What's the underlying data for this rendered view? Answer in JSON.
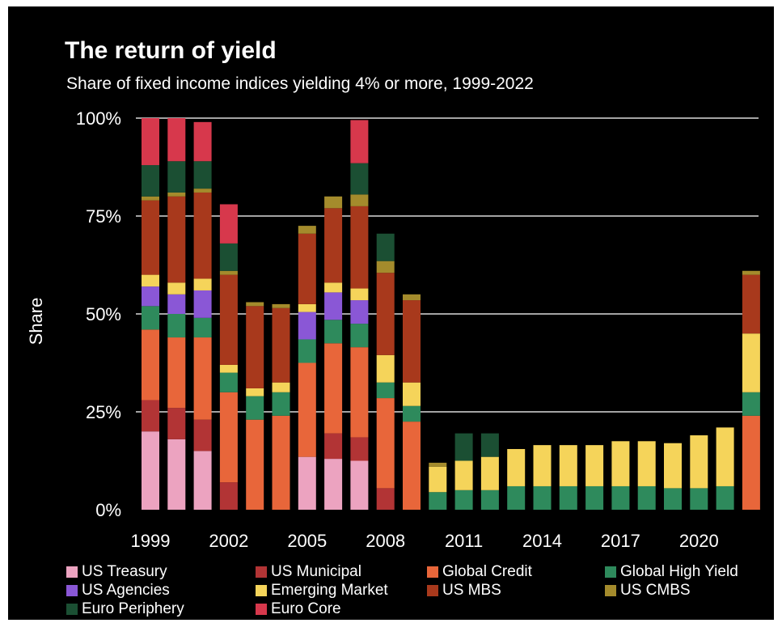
{
  "chart_data": {
    "type": "bar",
    "stacked": true,
    "title": "The return of yield",
    "subtitle": "Share of fixed income indices yielding 4% or more, 1999-2022",
    "xlabel": "",
    "ylabel": "Share",
    "ylim": [
      0,
      100
    ],
    "yticks": [
      "0%",
      "25%",
      "50%",
      "75%",
      "100%"
    ],
    "xticks": [
      "1999",
      "2002",
      "2005",
      "2008",
      "2011",
      "2014",
      "2017",
      "2020"
    ],
    "categories": [
      "1999",
      "2000",
      "2001",
      "2002",
      "2003",
      "2004",
      "2005",
      "2006",
      "2007",
      "2008",
      "2009",
      "2010",
      "2011",
      "2012",
      "2013",
      "2014",
      "2015",
      "2016",
      "2017",
      "2018",
      "2019",
      "2020",
      "2021",
      "2022"
    ],
    "grid": true,
    "legend_position": "bottom",
    "series": [
      {
        "name": "US Treasury",
        "color": "#eca3c0",
        "values": [
          20,
          18,
          15,
          0,
          0,
          0,
          13.5,
          13,
          12.5,
          0,
          0,
          0,
          0,
          0,
          0,
          0,
          0,
          0,
          0,
          0,
          0,
          0,
          0,
          0
        ]
      },
      {
        "name": "US Municipal",
        "color": "#b23435",
        "values": [
          8,
          8,
          8,
          7,
          0,
          0,
          0,
          6.5,
          6,
          5.5,
          0,
          0,
          0,
          0,
          0,
          0,
          0,
          0,
          0,
          0,
          0,
          0,
          0,
          0
        ]
      },
      {
        "name": "Global Credit",
        "color": "#e8663a",
        "values": [
          18,
          18,
          21,
          23,
          23,
          24,
          24,
          23,
          23,
          23,
          22.5,
          0,
          0,
          0,
          0,
          0,
          0,
          0,
          0,
          0,
          0,
          0,
          0,
          24
        ]
      },
      {
        "name": "Global High Yield",
        "color": "#2e8a5c",
        "values": [
          6,
          6,
          5,
          5,
          6,
          6,
          6,
          6,
          6,
          4,
          4,
          4.5,
          5,
          5,
          6,
          6,
          6,
          6,
          6,
          6,
          5.5,
          5.5,
          6,
          6
        ]
      },
      {
        "name": "US Agencies",
        "color": "#8a57d6",
        "values": [
          5,
          5,
          7,
          0,
          0,
          0,
          7,
          7,
          6,
          0,
          0,
          0,
          0,
          0,
          0,
          0,
          0,
          0,
          0,
          0,
          0,
          0,
          0,
          0
        ]
      },
      {
        "name": "Emerging Market",
        "color": "#f5d45a",
        "values": [
          3,
          3,
          3,
          2,
          2,
          2.5,
          2,
          2.5,
          3,
          7,
          6,
          6.5,
          7.5,
          8.5,
          9.5,
          10.5,
          10.5,
          10.5,
          11.5,
          11.5,
          11.5,
          13.5,
          15,
          15
        ]
      },
      {
        "name": "US MBS",
        "color": "#a8391c",
        "values": [
          19,
          22,
          22,
          23,
          21,
          19,
          18,
          19,
          21,
          21,
          21,
          0,
          0,
          0,
          0,
          0,
          0,
          0,
          0,
          0,
          0,
          0,
          0,
          15
        ]
      },
      {
        "name": "US CMBS",
        "color": "#a48b2c",
        "values": [
          1,
          1,
          1,
          1,
          1,
          1,
          2,
          3,
          3,
          3,
          1.5,
          1,
          0,
          0,
          0,
          0,
          0,
          0,
          0,
          0,
          0,
          0,
          0,
          1
        ]
      },
      {
        "name": "Euro Periphery",
        "color": "#1b4f33",
        "values": [
          8,
          8,
          7,
          7,
          0,
          0,
          0,
          0,
          8,
          7,
          0,
          0,
          7,
          6,
          0,
          0,
          0,
          0,
          0,
          0,
          0,
          0,
          0,
          0
        ]
      },
      {
        "name": "Euro Core",
        "color": "#d7384c",
        "values": [
          12,
          11,
          10,
          10,
          0,
          0,
          0,
          0,
          11,
          0,
          0,
          0,
          0,
          0,
          0,
          0,
          0,
          0,
          0,
          0,
          0,
          0,
          0,
          0
        ]
      }
    ]
  }
}
